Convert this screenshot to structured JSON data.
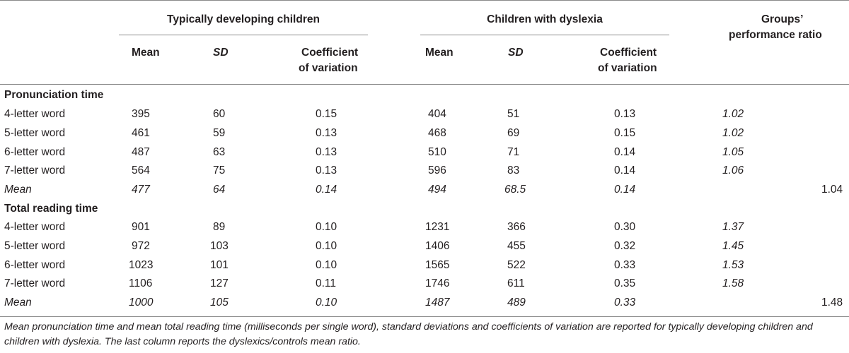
{
  "headers": {
    "group1": "Typically developing children",
    "group2": "Children with dyslexia",
    "ratio_line1": "Groups’",
    "ratio_line2": "performance ratio",
    "mean": "Mean",
    "sd": "SD",
    "cv_line1": "Coefficient",
    "cv_line2": "of variation"
  },
  "sections": [
    {
      "title": "Pronunciation time",
      "rows": [
        {
          "label": "4-letter word",
          "td_mean": "395",
          "td_sd": "60",
          "td_cv": "0.15",
          "dys_mean": "404",
          "dys_sd": "51",
          "dys_cv": "0.13",
          "ratio": "1.02"
        },
        {
          "label": "5-letter word",
          "td_mean": "461",
          "td_sd": "59",
          "td_cv": "0.13",
          "dys_mean": "468",
          "dys_sd": "69",
          "dys_cv": "0.15",
          "ratio": "1.02"
        },
        {
          "label": "6-letter word",
          "td_mean": "487",
          "td_sd": "63",
          "td_cv": "0.13",
          "dys_mean": "510",
          "dys_sd": "71",
          "dys_cv": "0.14",
          "ratio": "1.05"
        },
        {
          "label": "7-letter word",
          "td_mean": "564",
          "td_sd": "75",
          "td_cv": "0.13",
          "dys_mean": "596",
          "dys_sd": "83",
          "dys_cv": "0.14",
          "ratio": "1.06"
        }
      ],
      "mean_row": {
        "label": "Mean",
        "td_mean": "477",
        "td_sd": "64",
        "td_cv": "0.14",
        "dys_mean": "494",
        "dys_sd": "68.5",
        "dys_cv": "0.14",
        "ratio": "1.04"
      }
    },
    {
      "title": "Total reading time",
      "rows": [
        {
          "label": "4-letter word",
          "td_mean": "901",
          "td_sd": "89",
          "td_cv": "0.10",
          "dys_mean": "1231",
          "dys_sd": "366",
          "dys_cv": "0.30",
          "ratio": "1.37"
        },
        {
          "label": "5-letter word",
          "td_mean": "972",
          "td_sd": "103",
          "td_cv": "0.10",
          "dys_mean": "1406",
          "dys_sd": "455",
          "dys_cv": "0.32",
          "ratio": "1.45"
        },
        {
          "label": "6-letter word",
          "td_mean": "1023",
          "td_sd": "101",
          "td_cv": "0.10",
          "dys_mean": "1565",
          "dys_sd": "522",
          "dys_cv": "0.33",
          "ratio": "1.53"
        },
        {
          "label": "7-letter word",
          "td_mean": "1106",
          "td_sd": "127",
          "td_cv": "0.11",
          "dys_mean": "1746",
          "dys_sd": "611",
          "dys_cv": "0.35",
          "ratio": "1.58"
        }
      ],
      "mean_row": {
        "label": "Mean",
        "td_mean": "1000",
        "td_sd": "105",
        "td_cv": "0.10",
        "dys_mean": "1487",
        "dys_sd": "489",
        "dys_cv": "0.33",
        "ratio": "1.48"
      }
    }
  ],
  "caption": "Mean pronunciation time and mean total reading time (milliseconds per single word), standard deviations and coefficients of variation are reported for typically developing children and children with dyslexia. The last column reports the dyslexics/controls mean ratio."
}
